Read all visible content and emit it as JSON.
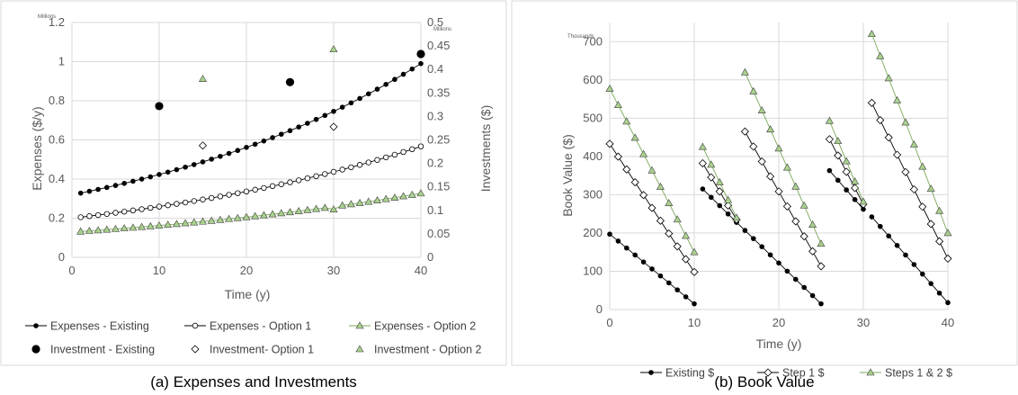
{
  "colors": {
    "existing": "#000000",
    "option1": "#ffffff",
    "option2": "#a9d18e",
    "grid": "#d9d9d9",
    "frame": "#d9d9d9",
    "text": "#595959"
  },
  "chart_data": [
    {
      "type": "scatter",
      "caption": "(a) Expenses and Investments",
      "xlabel": "Time (y)",
      "ylabel": "Expenses ($/y)",
      "y2label": "Investments ($)",
      "y_unit": "Millions",
      "y2_unit": "Millions",
      "xlim": [
        0,
        40
      ],
      "ylim": [
        0,
        1.2
      ],
      "y2lim": [
        0,
        0.5
      ],
      "x_ticks": [
        "0",
        "10",
        "20",
        "30",
        "40"
      ],
      "y_ticks": [
        "0",
        "0.2",
        "0.4",
        "0.6",
        "0.8",
        "1",
        "1.2"
      ],
      "y2_ticks": [
        "0",
        "0.05",
        "0.1",
        "0.15",
        "0.2",
        "0.25",
        "0.3",
        "0.35",
        "0.4",
        "0.45",
        "0.5"
      ],
      "grid": true,
      "legend_position": "bottom",
      "series": [
        {
          "name": "Expenses - Existing",
          "marker": "dot",
          "line": true,
          "axis": "left",
          "x_start": 1,
          "x_end": 40,
          "y_start": 0.328,
          "y_end": 0.99
        },
        {
          "name": "Expenses - Option 1",
          "marker": "open-circle",
          "line": true,
          "axis": "left",
          "x_start": 1,
          "x_end": 40,
          "y_start": 0.205,
          "y_end": 0.567
        },
        {
          "name": "Expenses - Option 2",
          "marker": "triangle",
          "line": true,
          "axis": "left",
          "x_start": 1,
          "x_end": 40,
          "y_start": 0.132,
          "y_end": 0.327,
          "drop_at": 30,
          "drop_value": 0.245
        },
        {
          "name": "Investment - Existing",
          "marker": "big-dot",
          "line": false,
          "axis": "right",
          "x": [
            10,
            25,
            40
          ],
          "y": [
            0.322,
            0.373,
            0.433
          ]
        },
        {
          "name": "Investment- Option 1",
          "marker": "diamond",
          "line": false,
          "axis": "right",
          "x": [
            15,
            30
          ],
          "y": [
            0.238,
            0.278
          ]
        },
        {
          "name": "Investment - Option 2",
          "marker": "triangle",
          "line": false,
          "axis": "right",
          "x": [
            15,
            30
          ],
          "y": [
            0.38,
            0.443
          ]
        }
      ]
    },
    {
      "type": "line",
      "caption": "(b) Book Value",
      "xlabel": "Time (y)",
      "ylabel": "Book Value ($)",
      "y_unit": "Thousands",
      "xlim": [
        0,
        40
      ],
      "ylim": [
        0,
        750
      ],
      "x_ticks": [
        "0",
        "10",
        "20",
        "30",
        "40"
      ],
      "y_ticks": [
        "0",
        "100",
        "200",
        "300",
        "400",
        "500",
        "600",
        "700"
      ],
      "grid": true,
      "legend_position": "bottom",
      "series": [
        {
          "name": "Existing $",
          "marker": "dot",
          "segments": [
            {
              "x0": 0,
              "x1": 10,
              "y0": 197,
              "y1": 15
            },
            {
              "x0": 11,
              "x1": 15,
              "y0": 315,
              "y1": 228
            },
            {
              "x0": 15,
              "x1": 25,
              "y0": 228,
              "y1": 15
            },
            {
              "x0": 26,
              "x1": 30,
              "y0": 363,
              "y1": 262
            },
            {
              "x0": 31,
              "x1": 40,
              "y0": 242,
              "y1": 18
            }
          ]
        },
        {
          "name": "Step 1 $",
          "marker": "diamond",
          "segments": [
            {
              "x0": 0,
              "x1": 10,
              "y0": 433,
              "y1": 98
            },
            {
              "x0": 11,
              "x1": 15,
              "y0": 382,
              "y1": 235
            },
            {
              "x0": 16,
              "x1": 25,
              "y0": 465,
              "y1": 113
            },
            {
              "x0": 26,
              "x1": 30,
              "y0": 445,
              "y1": 275
            },
            {
              "x0": 31,
              "x1": 40,
              "y0": 540,
              "y1": 133
            }
          ]
        },
        {
          "name": "Steps 1 & 2 $",
          "marker": "triangle",
          "segments": [
            {
              "x0": 0,
              "x1": 10,
              "y0": 577,
              "y1": 150
            },
            {
              "x0": 11,
              "x1": 15,
              "y0": 425,
              "y1": 240
            },
            {
              "x0": 16,
              "x1": 25,
              "y0": 620,
              "y1": 172
            },
            {
              "x0": 26,
              "x1": 30,
              "y0": 493,
              "y1": 282
            },
            {
              "x0": 31,
              "x1": 40,
              "y0": 720,
              "y1": 200
            }
          ]
        }
      ]
    }
  ]
}
